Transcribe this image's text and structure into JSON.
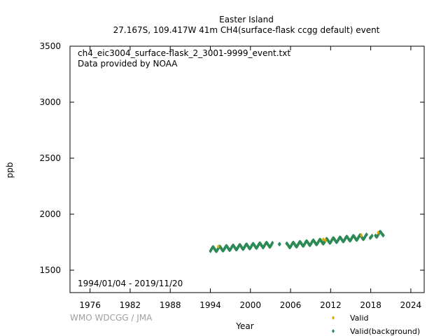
{
  "chart_data": {
    "type": "scatter",
    "title_line1": "Easter Island",
    "title_line2": "27.167S, 109.417W 41m    CH4(surface-flask ccgg default) event",
    "file_label": "ch4_eic3004_surface-flask_2_3001-9999_event.txt",
    "provider_label": "Data provided by NOAA",
    "date_range_label": "1994/01/04 - 2019/11/20",
    "credit": "WMO WDCGG / JMA",
    "xlabel": "Year",
    "ylabel": "ppb",
    "xlim": [
      1973,
      2026
    ],
    "ylim": [
      1300,
      3500
    ],
    "x_ticks": [
      1976,
      1982,
      1988,
      1994,
      2000,
      2006,
      2012,
      2018,
      2024
    ],
    "y_ticks": [
      1500,
      2000,
      2500,
      3000,
      3500
    ],
    "grid": false,
    "legend_position": "bottom-right",
    "series": [
      {
        "name": "Valid",
        "color": "#e6a800",
        "marker": "diamond",
        "points": [
          [
            1995.2,
            1712
          ],
          [
            2010.9,
            1775
          ],
          [
            2011.2,
            1768
          ],
          [
            2016.6,
            1812
          ],
          [
            2019.1,
            1835
          ]
        ]
      },
      {
        "name": "Valid(background)",
        "color": "#2e8b57",
        "marker": "diamond",
        "description": "dense seasonal flask samples",
        "segments": [
          {
            "start": 1994.0,
            "end": 2003.3,
            "base_start": 1685,
            "base_end": 1730,
            "amplitude": 18
          },
          {
            "start": 2004.3,
            "end": 2004.4,
            "base_start": 1728,
            "base_end": 1728,
            "amplitude": 5
          },
          {
            "start": 2005.4,
            "end": 2017.4,
            "base_start": 1720,
            "base_end": 1800,
            "amplitude": 18
          },
          {
            "start": 2017.9,
            "end": 2018.2,
            "base_start": 1800,
            "base_end": 1805,
            "amplitude": 12
          },
          {
            "start": 2018.7,
            "end": 2019.9,
            "base_start": 1815,
            "base_end": 1830,
            "amplitude": 18
          }
        ]
      }
    ]
  }
}
